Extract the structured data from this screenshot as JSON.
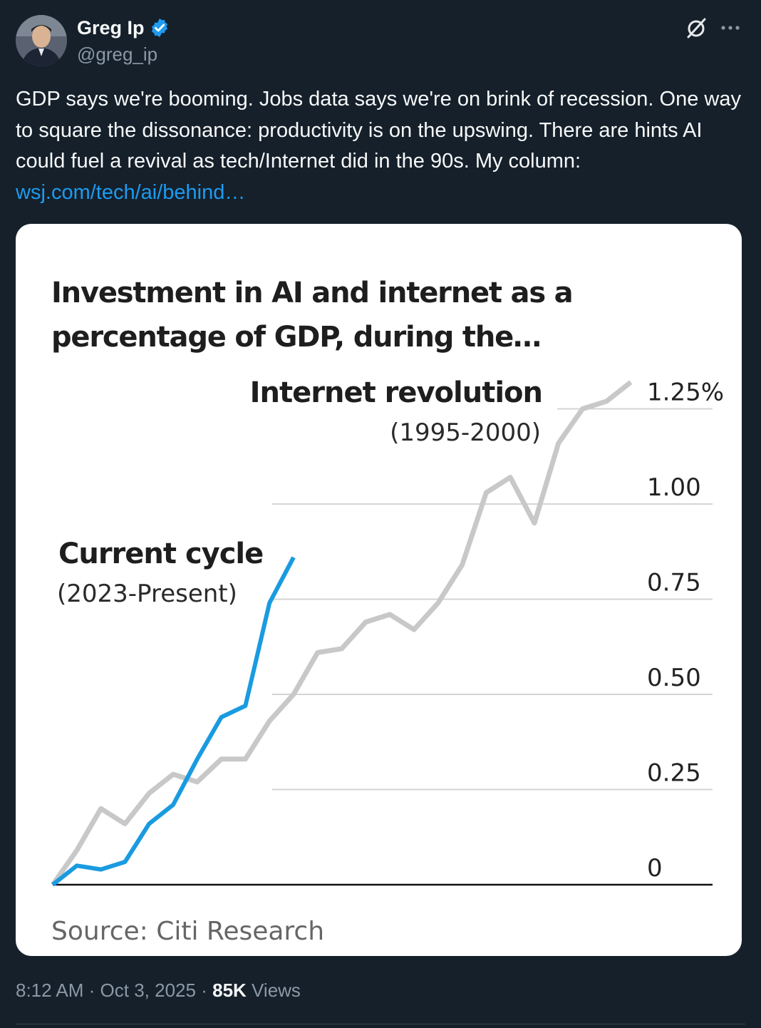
{
  "author": {
    "name": "Greg Ip",
    "handle": "@greg_ip",
    "verified": true
  },
  "icons": {
    "avatar": "avatar-photo",
    "verified": "verified-badge-icon",
    "grok": "grok-icon",
    "more": "more-icon"
  },
  "tweet": {
    "text": "GDP says we're booming. Jobs data says we're on brink of recession. One way to square the dissonance: productivity is on the upswing. There are hints AI could fuel a revival as tech/Internet did in the 90s. My column:",
    "link": "wsj.com/tech/ai/behind…"
  },
  "meta": {
    "time": "8:12 AM",
    "separator": "·",
    "date": "Oct 3, 2025",
    "views_count": "85K",
    "views_label": "Views"
  },
  "colors": {
    "background": "#15202b",
    "link": "#1d9bf0",
    "current_series": "#1a9be0",
    "internet_series": "#c8c8c8"
  },
  "chart_data": {
    "type": "line",
    "title_lines": [
      "Investment in AI and internet as a",
      "percentage of GDP, during the…"
    ],
    "ylim": [
      0,
      1.25
    ],
    "yticks": [
      0,
      0.25,
      0.5,
      0.75,
      1.0,
      1.25
    ],
    "ytick_labels": [
      "0",
      "0.25",
      "0.50",
      "0.75",
      "1.00",
      "1.25%"
    ],
    "source": "Source: Citi Research",
    "series": [
      {
        "name": "Internet revolution",
        "subtitle": "(1995-2000)",
        "color": "#c8c8c8",
        "values": [
          0,
          0.09,
          0.2,
          0.16,
          0.24,
          0.29,
          0.27,
          0.33,
          0.33,
          0.43,
          0.5,
          0.61,
          0.62,
          0.69,
          0.71,
          0.67,
          0.74,
          0.84,
          1.03,
          1.07,
          0.95,
          1.16,
          1.25,
          1.27,
          1.32
        ]
      },
      {
        "name": "Current cycle",
        "subtitle": "(2023-Present)",
        "color": "#1a9be0",
        "values": [
          0,
          0.05,
          0.04,
          0.06,
          0.16,
          0.21,
          0.33,
          0.44,
          0.47,
          0.74,
          0.86
        ]
      }
    ]
  }
}
